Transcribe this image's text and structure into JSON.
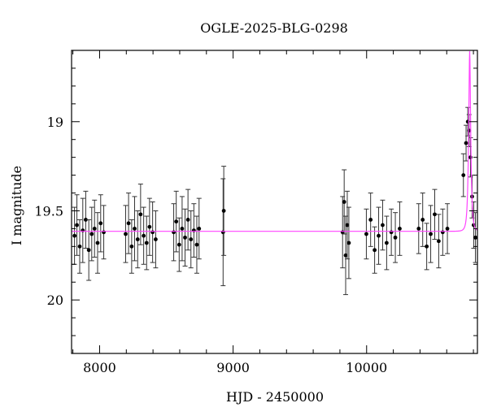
{
  "chart_data": {
    "type": "scatter",
    "title": "OGLE-2025-BLG-0298",
    "xlabel": "HJD - 2450000",
    "ylabel": "I magnitude",
    "xlim": [
      7790,
      10830
    ],
    "ylim": [
      20.3,
      18.6
    ],
    "y_inverted": true,
    "x_ticks": [
      8000,
      9000,
      10000
    ],
    "y_ticks": [
      19,
      19.5,
      20
    ],
    "x_minor_step": 200,
    "y_minor_step": 0.1,
    "grid": false,
    "model_color": "#ff44ff",
    "point_color": "#000000",
    "series": [
      {
        "kind": "points_with_errorbars",
        "x": [
          7812,
          7830,
          7851,
          7874,
          7896,
          7919,
          7941,
          7962,
          7985,
          8008,
          8031,
          8195,
          8217,
          8240,
          8262,
          8285,
          8307,
          8330,
          8352,
          8374,
          8397,
          8420,
          8555,
          8574,
          8596,
          8618,
          8640,
          8662,
          8684,
          8706,
          8728,
          8745,
          8925,
          8930,
          9820,
          9832,
          9843,
          9855,
          9867,
          9998,
          10030,
          10060,
          10090,
          10120,
          10150,
          10185,
          10215,
          10248,
          10390,
          10420,
          10450,
          10480,
          10510,
          10540,
          10570,
          10605,
          10725,
          10745,
          10758,
          10768,
          10778,
          10790,
          10802,
          10815
        ],
        "y": [
          19.64,
          19.58,
          19.7,
          19.61,
          19.55,
          19.72,
          19.63,
          19.6,
          19.68,
          19.57,
          19.62,
          19.63,
          19.57,
          19.7,
          19.6,
          19.66,
          19.52,
          19.64,
          19.68,
          19.59,
          19.62,
          19.66,
          19.62,
          19.56,
          19.69,
          19.6,
          19.65,
          19.55,
          19.66,
          19.61,
          19.69,
          19.6,
          19.62,
          19.5,
          19.62,
          19.45,
          19.75,
          19.58,
          19.68,
          19.63,
          19.55,
          19.72,
          19.64,
          19.58,
          19.68,
          19.62,
          19.65,
          19.6,
          19.6,
          19.55,
          19.7,
          19.63,
          19.52,
          19.67,
          19.62,
          19.6,
          19.3,
          19.12,
          19.0,
          19.05,
          19.2,
          19.42,
          19.58,
          19.65
        ],
        "yerr": [
          0.16,
          0.17,
          0.15,
          0.18,
          0.16,
          0.17,
          0.15,
          0.16,
          0.17,
          0.16,
          0.15,
          0.16,
          0.17,
          0.15,
          0.18,
          0.16,
          0.17,
          0.16,
          0.15,
          0.16,
          0.17,
          0.16,
          0.16,
          0.17,
          0.15,
          0.18,
          0.16,
          0.17,
          0.16,
          0.15,
          0.16,
          0.17,
          0.3,
          0.25,
          0.2,
          0.18,
          0.22,
          0.19,
          0.2,
          0.14,
          0.15,
          0.13,
          0.16,
          0.14,
          0.15,
          0.13,
          0.14,
          0.15,
          0.14,
          0.15,
          0.13,
          0.16,
          0.14,
          0.15,
          0.13,
          0.14,
          0.12,
          0.1,
          0.08,
          0.09,
          0.11,
          0.12,
          0.13,
          0.14
        ]
      },
      {
        "kind": "model_curve",
        "baseline": 19.615,
        "t0": 10772,
        "tE": 14,
        "u0": 0.42
      }
    ]
  }
}
